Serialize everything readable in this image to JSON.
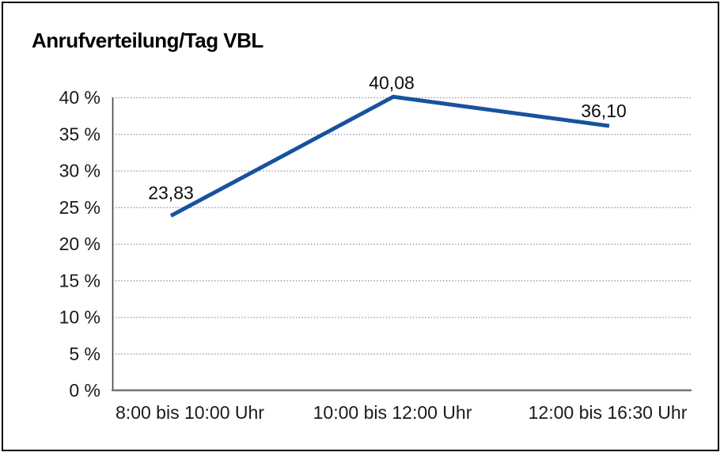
{
  "chart_data": {
    "type": "line",
    "title": "Anrufverteilung/Tag VBL",
    "categories": [
      "8:00 bis 10:00 Uhr",
      "10:00 bis 12:00 Uhr",
      "12:00 bis 16:30 Uhr"
    ],
    "values": [
      23.83,
      40.08,
      36.1
    ],
    "value_labels": [
      "23,83",
      "40,08",
      "36,10"
    ],
    "y_tick_labels": [
      "0 %",
      "5 %",
      "10 %",
      "15 %",
      "20 %",
      "25 %",
      "30 %",
      "35 %",
      "40 %"
    ],
    "y_tick_values": [
      0,
      5,
      10,
      15,
      20,
      25,
      30,
      35,
      40
    ],
    "ylim": [
      0,
      40
    ],
    "grid": true,
    "gridline_style": "dotted",
    "legend": "none",
    "colors": {
      "line": "#17529E",
      "gridline": "#8a8a8a",
      "y_axis_line": "#404040",
      "x_axis_line": "#737373",
      "text": "#1a1a1a",
      "frame_border": "#000000",
      "background": "#ffffff"
    }
  }
}
